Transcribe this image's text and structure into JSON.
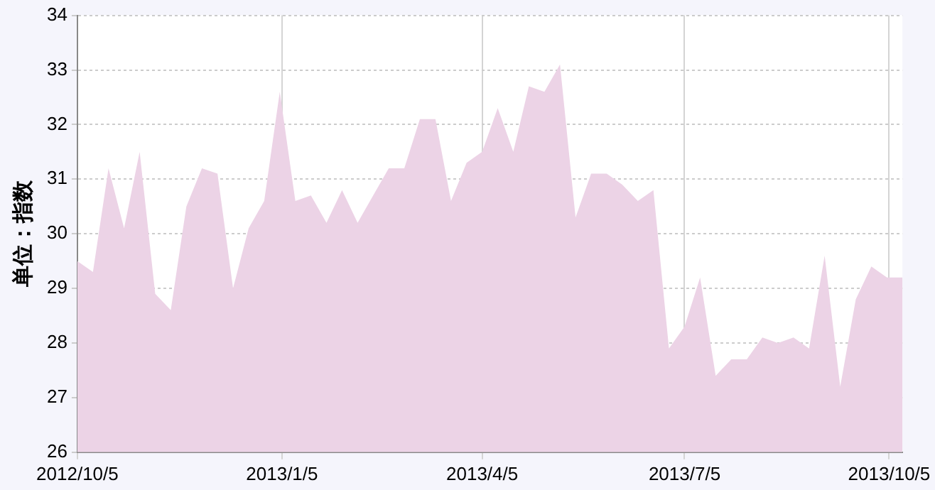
{
  "chart_data": {
    "type": "area",
    "ylabel": "单位：指数",
    "color": "#ecd3e6",
    "x": [
      "2012-10-05",
      "2012-10-12",
      "2012-10-19",
      "2012-10-26",
      "2012-11-02",
      "2012-11-09",
      "2012-11-16",
      "2012-11-23",
      "2012-11-30",
      "2012-12-07",
      "2012-12-14",
      "2012-12-21",
      "2012-12-28",
      "2013-01-04",
      "2013-01-11",
      "2013-01-18",
      "2013-01-25",
      "2013-02-01",
      "2013-02-08",
      "2013-02-15",
      "2013-02-22",
      "2013-03-01",
      "2013-03-08",
      "2013-03-15",
      "2013-03-22",
      "2013-03-29",
      "2013-04-05",
      "2013-04-12",
      "2013-04-19",
      "2013-04-26",
      "2013-05-03",
      "2013-05-10",
      "2013-05-17",
      "2013-05-24",
      "2013-05-31",
      "2013-06-07",
      "2013-06-14",
      "2013-06-21",
      "2013-06-28",
      "2013-07-05",
      "2013-07-12",
      "2013-07-19",
      "2013-07-26",
      "2013-08-02",
      "2013-08-09",
      "2013-08-16",
      "2013-08-23",
      "2013-08-30",
      "2013-09-06",
      "2013-09-13",
      "2013-09-20",
      "2013-09-27",
      "2013-10-04",
      "2013-10-11"
    ],
    "values": [
      29.5,
      29.3,
      31.2,
      30.1,
      31.5,
      28.9,
      28.6,
      30.5,
      31.2,
      31.1,
      29.0,
      30.1,
      30.6,
      32.6,
      30.6,
      30.7,
      30.2,
      30.8,
      30.2,
      30.7,
      31.2,
      31.2,
      32.1,
      32.1,
      30.6,
      31.3,
      31.5,
      32.3,
      31.5,
      32.7,
      32.6,
      33.1,
      30.3,
      31.1,
      31.1,
      30.9,
      30.6,
      30.8,
      27.9,
      28.3,
      29.2,
      27.4,
      27.7,
      27.7,
      28.1,
      28.0,
      28.1,
      27.9,
      29.6,
      27.2,
      28.8,
      29.4,
      29.2,
      29.2
    ],
    "xlim": [
      "2012-10-05",
      "2013-10-11"
    ],
    "xticks": [
      {
        "value": "2012-10-05",
        "label": "2012/10/5"
      },
      {
        "value": "2013-01-05",
        "label": "2013/1/5"
      },
      {
        "value": "2013-04-05",
        "label": "2013/4/5"
      },
      {
        "value": "2013-07-05",
        "label": "2013/7/5"
      },
      {
        "value": "2013-10-05",
        "label": "2013/10/5"
      }
    ],
    "ylim": [
      26,
      34
    ],
    "yticks": [
      26,
      27,
      28,
      29,
      30,
      31,
      32,
      33,
      34
    ],
    "grid": true,
    "legend": false
  }
}
